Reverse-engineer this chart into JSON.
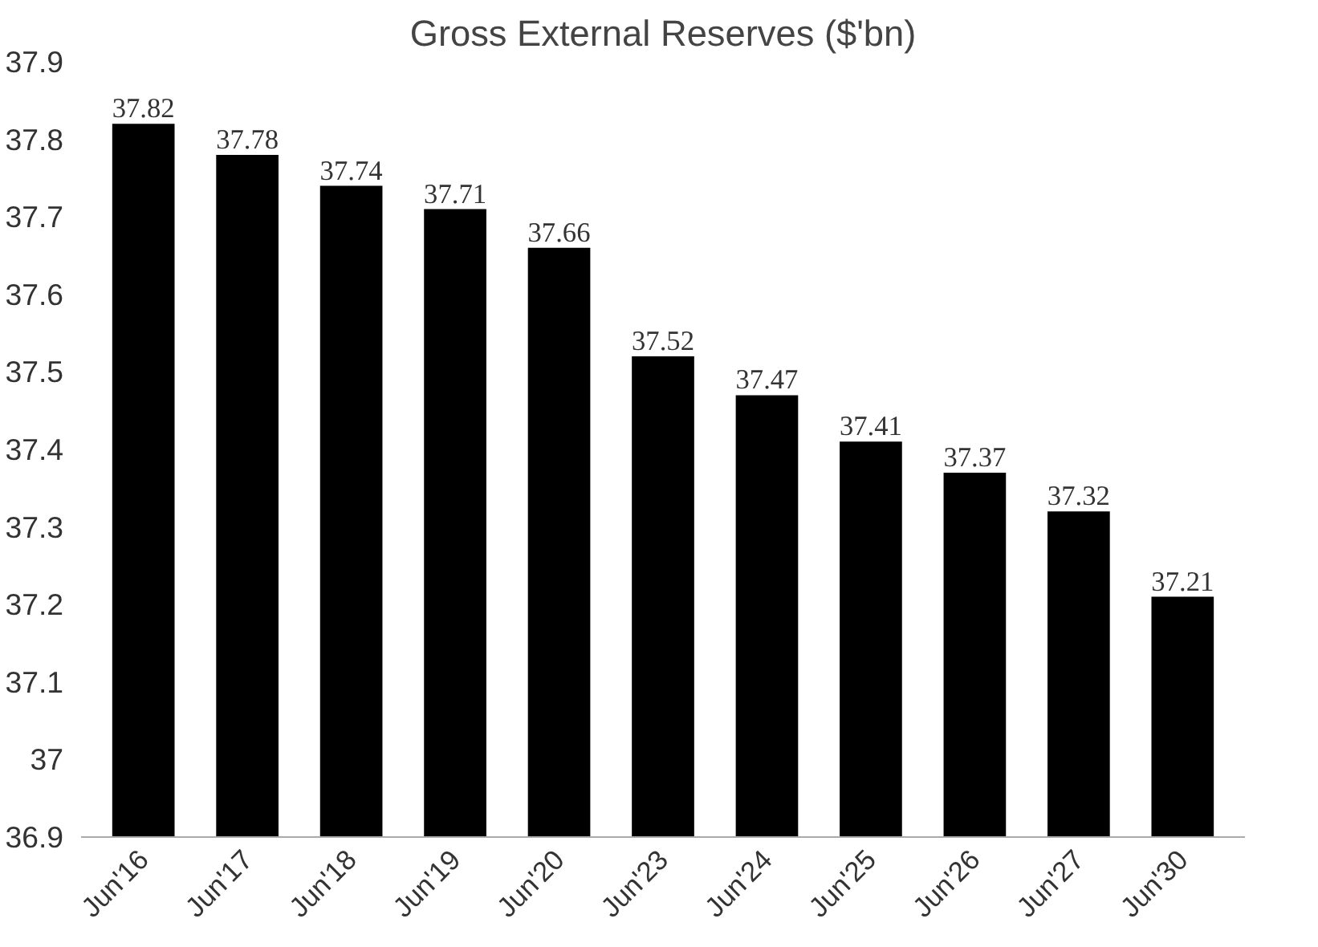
{
  "chart_data": {
    "type": "bar",
    "title": "Gross External Reserves ($'bn)",
    "categories": [
      "Jun'16",
      "Jun'17",
      "Jun'18",
      "Jun'19",
      "Jun'20",
      "Jun'23",
      "Jun'24",
      "Jun'25",
      "Jun'26",
      "Jun'27",
      "Jun'30"
    ],
    "values": [
      37.82,
      37.78,
      37.74,
      37.71,
      37.66,
      37.52,
      37.47,
      37.41,
      37.37,
      37.32,
      37.21
    ],
    "color": "#000000",
    "ylim": [
      36.9,
      37.9
    ],
    "yticks": [
      36.9,
      37,
      37.1,
      37.2,
      37.3,
      37.4,
      37.5,
      37.6,
      37.7,
      37.8,
      37.9
    ],
    "grid": false,
    "data_labels": true
  }
}
